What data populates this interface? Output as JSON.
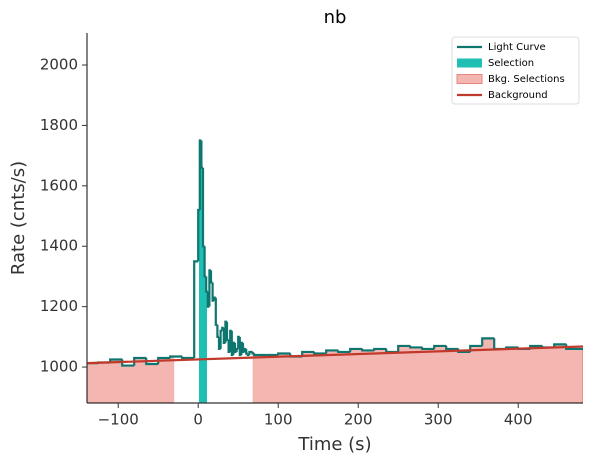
{
  "chart_data": {
    "type": "step",
    "title": "nb",
    "x_label": "Time (s)",
    "y_label": "Rate (cnts/s)",
    "xlim": [
      -139,
      481
    ],
    "ylim": [
      881,
      2106
    ],
    "xticks": [
      {
        "value": -100,
        "label": "−100"
      },
      0,
      100,
      200,
      300,
      400
    ],
    "yticks": [
      1000,
      1200,
      1400,
      1600,
      1800,
      2000
    ],
    "legend": "upper right",
    "series": [
      {
        "name": "Light Curve",
        "color": "#0f766f",
        "bins": [
          -139,
          -125,
          -110,
          -95,
          -80,
          -65,
          -50,
          -35,
          -20,
          -5,
          0,
          2,
          4,
          6,
          8,
          10,
          12,
          14,
          16,
          18,
          20,
          22,
          24,
          26,
          28,
          30,
          32,
          34,
          36,
          38,
          40,
          42,
          44,
          46,
          48,
          50,
          52,
          54,
          56,
          58,
          60,
          62,
          64,
          66,
          68,
          70,
          85,
          100,
          115,
          130,
          145,
          160,
          175,
          190,
          205,
          220,
          235,
          250,
          265,
          280,
          295,
          310,
          325,
          340,
          355,
          370,
          385,
          400,
          415,
          430,
          445,
          460,
          481
        ],
        "values": [
          1013,
          1015,
          1025,
          1005,
          1030,
          1010,
          1030,
          1035,
          1030,
          1350,
          1520,
          1750,
          1660,
          1400,
          1300,
          1250,
          1200,
          1320,
          1280,
          1220,
          1230,
          1140,
          1100,
          1060,
          1120,
          1130,
          1080,
          1150,
          1090,
          1050,
          1120,
          1040,
          1080,
          1050,
          1060,
          1100,
          1040,
          1080,
          1050,
          1060,
          1045,
          1040,
          1050,
          1050,
          1045,
          1040,
          1040,
          1045,
          1035,
          1050,
          1045,
          1055,
          1050,
          1060,
          1055,
          1060,
          1050,
          1070,
          1065,
          1060,
          1070,
          1060,
          1050,
          1070,
          1095,
          1060,
          1065,
          1060,
          1070,
          1065,
          1075,
          1060
        ]
      }
    ],
    "selection": {
      "name": "Selection",
      "color": "#1fbfb3",
      "range": [
        1,
        11
      ]
    },
    "bkg_selections": {
      "name": "Bkg. Selections",
      "color": "#f4b6b0",
      "edgecolor": "#e8867e",
      "ranges": [
        [
          -139,
          -30
        ],
        [
          68,
          481
        ]
      ]
    },
    "background": {
      "name": "Background",
      "color": "#c0392b",
      "x": [
        -139,
        481
      ],
      "values": [
        1013,
        1068
      ]
    }
  }
}
